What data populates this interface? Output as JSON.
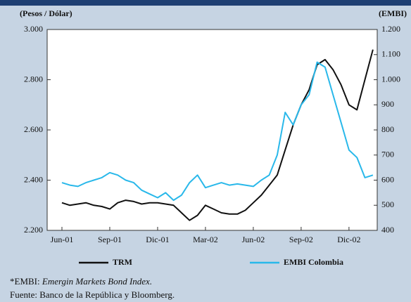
{
  "chart_data": {
    "type": "line",
    "y_axis_label": "(Pesos / Dólar)",
    "y2_axis_label": "(EMBI)",
    "categories": [
      "Jun-01",
      null,
      null,
      null,
      null,
      null,
      "Sep-01",
      null,
      null,
      null,
      null,
      null,
      "Dic-01",
      null,
      null,
      null,
      null,
      null,
      "Mar-02",
      null,
      null,
      null,
      null,
      null,
      "Jun-02",
      null,
      null,
      null,
      null,
      null,
      "Sep-02",
      null,
      null,
      null,
      null,
      null,
      "Dic-02",
      null,
      null,
      null
    ],
    "ylim": [
      2200,
      3000
    ],
    "yticks": [
      {
        "value": 2200,
        "label": "2.200"
      },
      {
        "value": 2400,
        "label": "2.400"
      },
      {
        "value": 2600,
        "label": "2.600"
      },
      {
        "value": 2800,
        "label": "2.800"
      },
      {
        "value": 3000,
        "label": "3.000"
      }
    ],
    "y2lim": [
      400,
      1200
    ],
    "y2ticks": [
      400,
      500,
      600,
      700,
      800,
      900,
      {
        "value": 1000,
        "label": "1.000"
      },
      {
        "value": 1100,
        "label": "1.100"
      },
      {
        "value": 1200,
        "label": "1.200"
      }
    ],
    "series": [
      {
        "name": "TRM",
        "color": "#111111",
        "values": [
          2310,
          2300,
          2305,
          2310,
          2300,
          2295,
          2285,
          2310,
          2320,
          2315,
          2305,
          2310,
          2310,
          2305,
          2300,
          2270,
          2240,
          2260,
          2300,
          2285,
          2270,
          2265,
          2265,
          2280,
          2310,
          2340,
          2380,
          2420,
          2520,
          2620,
          2700,
          2760,
          2860,
          2880,
          2840,
          2780,
          2700,
          2680,
          2800,
          2920
        ]
      },
      {
        "name": "EMBI Colombia",
        "color": "#29b8ea",
        "axis": "y2",
        "values": [
          590,
          580,
          575,
          590,
          600,
          610,
          630,
          620,
          600,
          590,
          560,
          545,
          530,
          550,
          520,
          540,
          590,
          620,
          570,
          580,
          590,
          580,
          585,
          580,
          575,
          600,
          620,
          700,
          870,
          820,
          900,
          940,
          1070,
          1050,
          940,
          830,
          720,
          690,
          610,
          620
        ]
      }
    ]
  },
  "notes": [
    {
      "prefix": "*EMBI: ",
      "italic": "Emergin Markets Bond Index."
    },
    {
      "text": "Fuente: Banco de la República y Bloomberg."
    }
  ]
}
